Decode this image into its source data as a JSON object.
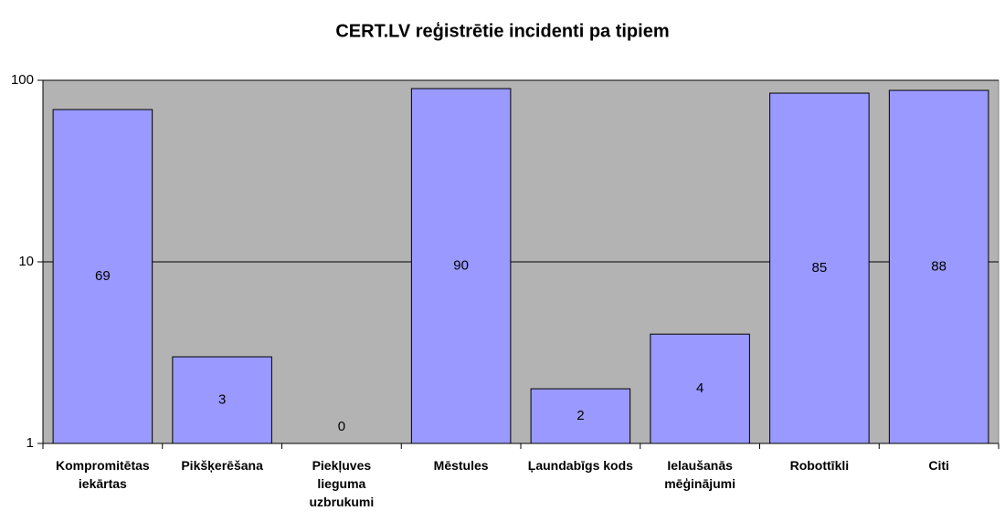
{
  "chart_data": {
    "type": "bar",
    "title": "CERT.LV reģistrētie incidenti pa tipiem",
    "categories": [
      "Kompromitētas iekārtas",
      "Pikšķerēšana",
      "Piekļuves lieguma uzbrukumi",
      "Mēstules",
      "Ļaundabīgs kods",
      "Ielaušanās mēģinājumi",
      "Robottīkli",
      "Citi"
    ],
    "values": [
      69,
      3,
      0,
      90,
      2,
      4,
      85,
      88
    ],
    "color": "#9999ff",
    "log_scale": true,
    "ylim": [
      1,
      100
    ],
    "yticks": [
      1,
      10,
      100
    ],
    "grid": true
  }
}
